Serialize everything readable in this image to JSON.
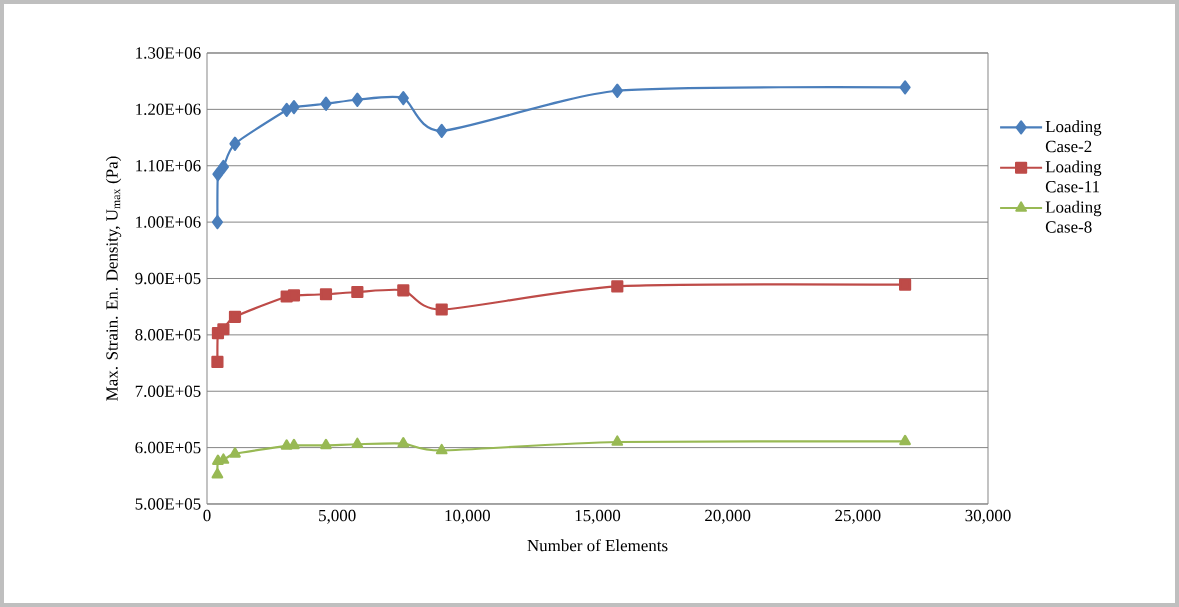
{
  "chart_data": {
    "type": "line",
    "xlabel": "Number of Elements",
    "ylabel": "Max. Strain. En. Density, U$_{max}$ (Pa)",
    "xlim": [
      0,
      30000
    ],
    "ylim": [
      500000,
      1300000
    ],
    "xticks": [
      0,
      {
        "value": 5000,
        "label": "5,000"
      },
      {
        "value": 10000,
        "label": "10,000"
      },
      {
        "value": 15000,
        "label": "15,000"
      },
      {
        "value": 20000,
        "label": "20,000"
      },
      {
        "value": 25000,
        "label": "25,000"
      },
      {
        "value": 30000,
        "label": "30,000"
      }
    ],
    "yticks": [
      {
        "value": 500000,
        "label": "5.00E+05"
      },
      {
        "value": 600000,
        "label": "6.00E+05"
      },
      {
        "value": 700000,
        "label": "7.00E+05"
      },
      {
        "value": 800000,
        "label": "8.00E+05"
      },
      {
        "value": 900000,
        "label": "9.00E+05"
      },
      {
        "value": 1000000,
        "label": "1.00E+06"
      },
      {
        "value": 1100000,
        "label": "1.10E+06"
      },
      {
        "value": 1200000,
        "label": "1.20E+06"
      },
      {
        "value": 1300000,
        "label": "1.30E+06"
      }
    ],
    "x": [
      400,
      420,
      630,
      1075,
      3060,
      3340,
      4570,
      5775,
      7540,
      9015,
      15760,
      26815
    ],
    "grid": "y",
    "legend": "right",
    "series": [
      {
        "name": "Loading Case-2",
        "color": "#4a7ebb",
        "marker": "diamond",
        "values": [
          1000000,
          1085000,
          1098000,
          1139000,
          1199000,
          1204000,
          1210000,
          1217000,
          1220000,
          1162000,
          1233000,
          1239000
        ]
      },
      {
        "name": "Loading Case-11",
        "color": "#be4b48",
        "marker": "square",
        "values": [
          752000,
          803000,
          810000,
          832000,
          868000,
          870000,
          872000,
          876000,
          879000,
          845000,
          886000,
          889000
        ]
      },
      {
        "name": "Loading Case-8",
        "color": "#98b954",
        "marker": "triangle",
        "values": [
          552000,
          576000,
          578000,
          589000,
          603000,
          604000,
          604000,
          606000,
          607000,
          595000,
          610000,
          611000
        ]
      }
    ]
  }
}
